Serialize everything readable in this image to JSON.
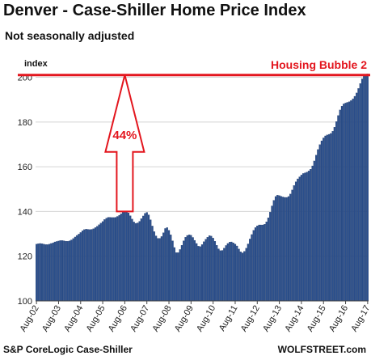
{
  "header": {
    "title": "Denver - Case-Shiller Home Price Index",
    "subtitle": "Not seasonally adjusted"
  },
  "footer": {
    "source": "S&P CoreLogic Case-Shiller",
    "credit": "WOLFSTREET.com"
  },
  "annotations": {
    "line_label": "Housing Bubble 2",
    "arrow_label": "44%"
  },
  "colors": {
    "bar_fill": "#2b4f8c",
    "bar_edge": "#1b3564",
    "highlight": "#e3161e",
    "grid": "#d4d4d4"
  },
  "chart_data": {
    "type": "bar",
    "title": "Denver - Case-Shiller Home Price Index",
    "subtitle": "Not seasonally adjusted",
    "ylabel": "index",
    "xlabel": "",
    "ylim": [
      100,
      202
    ],
    "yticks": [
      100,
      120,
      140,
      160,
      180,
      200
    ],
    "grid": true,
    "x_tick_labels": [
      "Aug-02",
      "Aug-03",
      "Aug-04",
      "Aug-05",
      "Aug-06",
      "Aug-07",
      "Aug-08",
      "Aug-09",
      "Aug-10",
      "Aug-11",
      "Aug-12",
      "Aug-13",
      "Aug-14",
      "Aug-15",
      "Aug-16",
      "Aug-17"
    ],
    "x_start": "Aug-02",
    "x_frequency": "monthly",
    "reference_line": {
      "label": "Housing Bubble 2",
      "value": 201
    },
    "arrow": {
      "label": "44%",
      "from": 140,
      "to": 201,
      "at": "Aug-06"
    },
    "values": [
      125.4,
      125.6,
      125.7,
      125.6,
      125.4,
      125.2,
      125.2,
      125.4,
      125.7,
      126.0,
      126.4,
      126.6,
      126.8,
      127.0,
      127.0,
      126.9,
      126.7,
      126.7,
      126.9,
      127.3,
      127.9,
      128.6,
      129.3,
      129.9,
      130.6,
      131.4,
      131.9,
      132.1,
      132.0,
      131.9,
      132.0,
      132.3,
      132.8,
      133.4,
      134.1,
      134.8,
      135.5,
      136.4,
      137.0,
      137.4,
      137.4,
      137.3,
      137.3,
      137.4,
      137.8,
      138.3,
      139.0,
      139.7,
      140.3,
      140.2,
      139.4,
      138.1,
      136.6,
      135.3,
      134.7,
      134.9,
      135.6,
      136.8,
      138.0,
      139.2,
      139.6,
      138.5,
      136.3,
      133.5,
      131.0,
      129.1,
      128.0,
      128.0,
      128.8,
      130.5,
      132.4,
      132.8,
      131.6,
      129.6,
      126.9,
      123.9,
      121.6,
      121.6,
      123.0,
      124.9,
      126.9,
      128.5,
      129.3,
      129.6,
      129.4,
      128.4,
      127.1,
      125.7,
      124.5,
      124.3,
      125.2,
      126.5,
      127.6,
      128.5,
      129.2,
      129.0,
      128.1,
      126.7,
      124.9,
      123.3,
      122.5,
      122.6,
      123.6,
      124.8,
      125.7,
      126.3,
      126.4,
      126.0,
      125.4,
      124.6,
      123.2,
      122.0,
      121.5,
      122.2,
      123.6,
      125.5,
      127.7,
      129.7,
      131.6,
      132.8,
      133.6,
      134.0,
      134.0,
      134.0,
      134.3,
      135.4,
      137.2,
      139.7,
      142.5,
      145.0,
      146.7,
      147.3,
      147.1,
      146.8,
      146.5,
      146.3,
      146.3,
      146.7,
      147.8,
      149.6,
      151.6,
      153.3,
      154.6,
      155.5,
      156.3,
      157.0,
      157.3,
      157.6,
      158.1,
      158.9,
      160.4,
      162.6,
      165.2,
      167.7,
      169.9,
      171.6,
      172.9,
      173.8,
      174.2,
      174.5,
      174.9,
      175.9,
      177.7,
      180.2,
      182.9,
      185.4,
      187.1,
      188.1,
      188.5,
      188.8,
      189.1,
      189.6,
      190.4,
      191.5,
      193.0,
      195.0,
      197.2,
      199.3,
      200.6,
      201.3,
      201.5
    ]
  }
}
